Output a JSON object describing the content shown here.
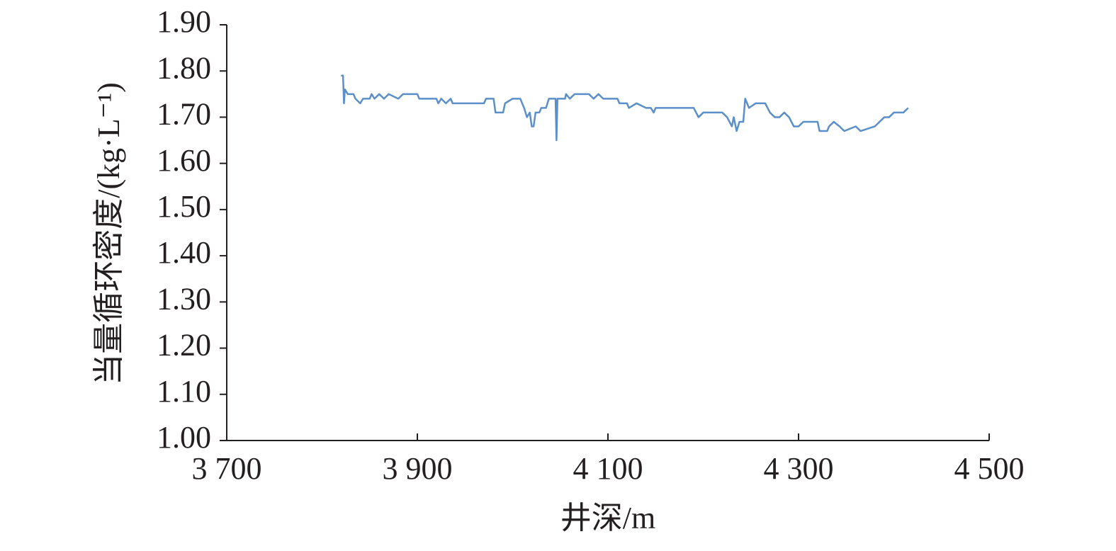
{
  "chart_data": {
    "type": "line",
    "x_label": "井深/m",
    "y_label": "当量循环密度/(kg·L⁻¹)",
    "color": "#5b8fc9",
    "x": [
      3820,
      3822,
      3823,
      3824,
      3827,
      3833,
      3835,
      3840,
      3843,
      3850,
      3852,
      3855,
      3860,
      3865,
      3870,
      3880,
      3885,
      3900,
      3902,
      3920,
      3922,
      3925,
      3930,
      3935,
      3937,
      3970,
      3972,
      3980,
      3982,
      3990,
      3992,
      4000,
      4008,
      4012,
      4015,
      4018,
      4020,
      4022,
      4024,
      4028,
      4030,
      4035,
      4038,
      4045,
      4046,
      4047,
      4055,
      4056,
      4060,
      4065,
      4080,
      4085,
      4090,
      4095,
      4110,
      4112,
      4120,
      4122,
      4130,
      4140,
      4145,
      4148,
      4150,
      4190,
      4195,
      4200,
      4210,
      4220,
      4225,
      4230,
      4232,
      4235,
      4238,
      4242,
      4244,
      4248,
      4255,
      4265,
      4270,
      4275,
      4280,
      4285,
      4290,
      4295,
      4300,
      4305,
      4310,
      4320,
      4322,
      4330,
      4332,
      4337,
      4343,
      4348,
      4360,
      4365,
      4380,
      4385,
      4390,
      4395,
      4400,
      4410,
      4415
    ],
    "values": [
      1.79,
      1.79,
      1.73,
      1.76,
      1.75,
      1.75,
      1.74,
      1.73,
      1.74,
      1.74,
      1.75,
      1.74,
      1.75,
      1.74,
      1.75,
      1.74,
      1.75,
      1.75,
      1.74,
      1.74,
      1.73,
      1.74,
      1.73,
      1.74,
      1.73,
      1.73,
      1.74,
      1.74,
      1.71,
      1.71,
      1.73,
      1.74,
      1.74,
      1.72,
      1.7,
      1.71,
      1.68,
      1.68,
      1.71,
      1.71,
      1.72,
      1.72,
      1.74,
      1.74,
      1.65,
      1.74,
      1.74,
      1.75,
      1.74,
      1.75,
      1.75,
      1.74,
      1.75,
      1.74,
      1.74,
      1.73,
      1.73,
      1.72,
      1.73,
      1.72,
      1.72,
      1.71,
      1.72,
      1.72,
      1.7,
      1.71,
      1.71,
      1.71,
      1.7,
      1.68,
      1.7,
      1.67,
      1.69,
      1.69,
      1.74,
      1.72,
      1.73,
      1.73,
      1.71,
      1.7,
      1.7,
      1.71,
      1.7,
      1.68,
      1.68,
      1.69,
      1.69,
      1.69,
      1.67,
      1.67,
      1.68,
      1.69,
      1.68,
      1.67,
      1.68,
      1.67,
      1.68,
      1.69,
      1.7,
      1.7,
      1.71,
      1.71,
      1.72
    ],
    "xlim": [
      3700,
      4500
    ],
    "xticks": [
      {
        "value": 3700,
        "label": "3 700"
      },
      {
        "value": 3900,
        "label": "3 900"
      },
      {
        "value": 4100,
        "label": "4 100"
      },
      {
        "value": 4300,
        "label": "4 300"
      },
      {
        "value": 4500,
        "label": "4 500"
      }
    ],
    "ylim": [
      1.0,
      1.9
    ],
    "yticks": [
      {
        "value": 1.0,
        "label": "1.00"
      },
      {
        "value": 1.1,
        "label": "1.10"
      },
      {
        "value": 1.2,
        "label": "1.20"
      },
      {
        "value": 1.3,
        "label": "1.30"
      },
      {
        "value": 1.4,
        "label": "1.40"
      },
      {
        "value": 1.5,
        "label": "1.50"
      },
      {
        "value": 1.6,
        "label": "1.60"
      },
      {
        "value": 1.7,
        "label": "1.70"
      },
      {
        "value": 1.8,
        "label": "1.80"
      },
      {
        "value": 1.9,
        "label": "1.90"
      }
    ]
  }
}
